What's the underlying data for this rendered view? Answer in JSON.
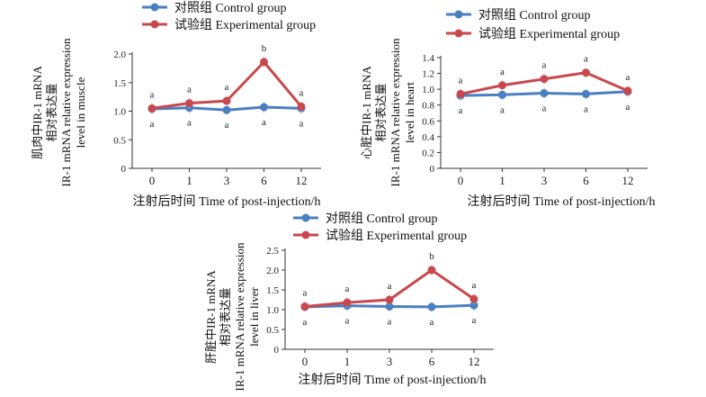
{
  "legend": {
    "control": "对照组 Control group",
    "experimental": "试验组 Experimental group"
  },
  "colors": {
    "control": "#4a7fc1",
    "experimental": "#c9484d",
    "axis": "#333333"
  },
  "chart_data": [
    {
      "type": "line",
      "panel": "muscle",
      "ylabel_lines": [
        "肌肉中IR-1 mRNA",
        "相对表达量",
        "IR-1 mRNA relative expression",
        "level in muscle"
      ],
      "xlabel": "注射后时间  Time of post-injection/h",
      "categories": [
        "0",
        "1",
        "3",
        "6",
        "12"
      ],
      "ylim": [
        0,
        2.0
      ],
      "yticks": [
        "0",
        "0.5",
        "1.0",
        "1.5",
        "2.0"
      ],
      "series": [
        {
          "name": "对照组 Control group",
          "key": "control",
          "values": [
            1.04,
            1.06,
            1.02,
            1.07,
            1.05
          ],
          "labels": [
            "a",
            "a",
            "a",
            "a",
            "a"
          ]
        },
        {
          "name": "试验组 Experimental group",
          "key": "experimental",
          "values": [
            1.05,
            1.14,
            1.18,
            1.86,
            1.08
          ],
          "labels": [
            "a",
            "a",
            "a",
            "b",
            "a"
          ]
        }
      ]
    },
    {
      "type": "line",
      "panel": "heart",
      "ylabel_lines": [
        "心脏中IR-1 mRNA",
        "相对表达量",
        "IR-1 mRNA relative expression",
        "level in heart"
      ],
      "xlabel": "注射后时间  Time of post-injection/h",
      "categories": [
        "0",
        "1",
        "3",
        "6",
        "12"
      ],
      "ylim": [
        0,
        1.4
      ],
      "yticks": [
        "0",
        "0.2",
        "0.4",
        "0.6",
        "0.8",
        "1.0",
        "1.2",
        "1.4"
      ],
      "series": [
        {
          "name": "对照组 Control group",
          "key": "control",
          "values": [
            0.92,
            0.93,
            0.95,
            0.94,
            0.97
          ],
          "labels": [
            "a",
            "a",
            "a",
            "a",
            "a"
          ]
        },
        {
          "name": "试验组 Experimental group",
          "key": "experimental",
          "values": [
            0.94,
            1.05,
            1.13,
            1.21,
            0.98
          ],
          "labels": [
            "a",
            "a",
            "a",
            "a",
            "a"
          ]
        }
      ]
    },
    {
      "type": "line",
      "panel": "liver",
      "ylabel_lines": [
        "肝脏中IR-1 mRNA",
        "相对表达量",
        "IR-1 mRNA relative expression",
        "level in liver"
      ],
      "xlabel": "注射后时间  Time of post-injection/h",
      "categories": [
        "0",
        "1",
        "3",
        "6",
        "12"
      ],
      "ylim": [
        0,
        2.5
      ],
      "yticks": [
        "0",
        "0.5",
        "1.0",
        "1.5",
        "2.0",
        "2.5"
      ],
      "series": [
        {
          "name": "对照组 Control group",
          "key": "control",
          "values": [
            1.07,
            1.1,
            1.08,
            1.07,
            1.11
          ],
          "labels": [
            "a",
            "a",
            "a",
            "a",
            "a"
          ]
        },
        {
          "name": "试验组 Experimental group",
          "key": "experimental",
          "values": [
            1.08,
            1.18,
            1.25,
            2.0,
            1.27
          ],
          "labels": [
            "a",
            "a",
            "a",
            "b",
            "a"
          ]
        }
      ]
    }
  ]
}
